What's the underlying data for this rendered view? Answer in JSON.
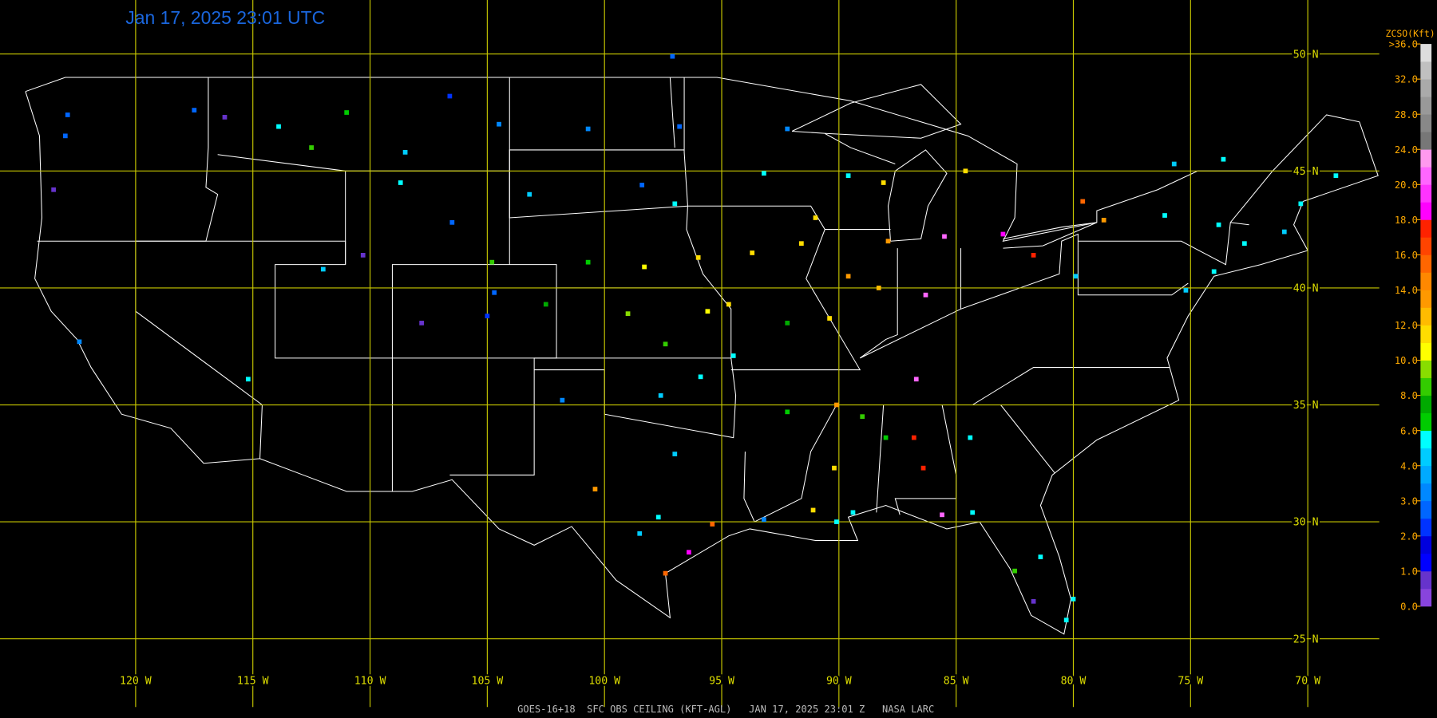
{
  "header": {
    "title": "Jan 17, 2025 23:01 UTC"
  },
  "footer": "GOES-16+18  SFC OBS CEILING (KFT-AGL)   JAN 17, 2025 23:01 Z   NASA LARC",
  "map": {
    "lat_lines": [
      {
        "value": 50,
        "label": "50 N"
      },
      {
        "value": 45,
        "label": "45 N"
      },
      {
        "value": 40,
        "label": "40 N"
      },
      {
        "value": 35,
        "label": "35 N"
      },
      {
        "value": 30,
        "label": "30 N"
      },
      {
        "value": 25,
        "label": "25 N"
      }
    ],
    "lon_lines": [
      {
        "value": -120,
        "label": "120 W"
      },
      {
        "value": -115,
        "label": "115 W"
      },
      {
        "value": -110,
        "label": "110 W"
      },
      {
        "value": -105,
        "label": "105 W"
      },
      {
        "value": -100,
        "label": "100 W"
      },
      {
        "value": -95,
        "label": "95 W"
      },
      {
        "value": -90,
        "label": "90 W"
      },
      {
        "value": -85,
        "label": "85 W"
      },
      {
        "value": -80,
        "label": "80 W"
      },
      {
        "value": -75,
        "label": "75 W"
      },
      {
        "value": -70,
        "label": "70 W"
      }
    ]
  },
  "legend": {
    "title": "ZCSO(Kft)",
    "ticks": [
      {
        "value": 0,
        "label": "0.0"
      },
      {
        "value": 1,
        "label": "1.0"
      },
      {
        "value": 2,
        "label": "2.0"
      },
      {
        "value": 3,
        "label": "3.0"
      },
      {
        "value": 4,
        "label": "4.0"
      },
      {
        "value": 6,
        "label": "6.0"
      },
      {
        "value": 8,
        "label": "8.0"
      },
      {
        "value": 10,
        "label": "10.0"
      },
      {
        "value": 12,
        "label": "12.0"
      },
      {
        "value": 14,
        "label": "14.0"
      },
      {
        "value": 16,
        "label": "16.0"
      },
      {
        "value": 18,
        "label": "18.0"
      },
      {
        "value": 20,
        "label": "20.0"
      },
      {
        "value": 24,
        "label": "24.0"
      },
      {
        "value": 28,
        "label": "28.0"
      },
      {
        "value": 32,
        "label": "32.0"
      },
      {
        "value": 36,
        "label": ">36.0"
      }
    ],
    "colors": [
      "#8844dd",
      "#6633cc",
      "#0000ff",
      "#0000dd",
      "#0033ff",
      "#0066ff",
      "#0088ff",
      "#00aaff",
      "#00ccff",
      "#00ffff",
      "#00cc00",
      "#00aa00",
      "#33cc00",
      "#88dd00",
      "#ffff00",
      "#ffdd00",
      "#ffbb00",
      "#ff9900",
      "#ff8800",
      "#ff6600",
      "#ff4400",
      "#ff2200",
      "#ff00ff",
      "#ff33ff",
      "#ff66ff",
      "#ff99ee",
      "#777777",
      "#888888",
      "#999999",
      "#aaaaaa",
      "#c0c0c0",
      "#dddddd"
    ]
  },
  "stations": [
    [
      -123.0,
      46.5,
      2.5
    ],
    [
      -123.5,
      44.2,
      0.8
    ],
    [
      -122.9,
      47.4,
      2.5
    ],
    [
      -117.5,
      47.6,
      2.5
    ],
    [
      -116.2,
      47.3,
      0.5
    ],
    [
      -113.9,
      46.9,
      5
    ],
    [
      -111.0,
      47.5,
      6.5
    ],
    [
      -108.5,
      45.8,
      4
    ],
    [
      -106.6,
      48.2,
      2
    ],
    [
      -104.5,
      47.0,
      3
    ],
    [
      -112.5,
      46.0,
      8
    ],
    [
      -106.5,
      42.8,
      2.5
    ],
    [
      -108.7,
      44.5,
      5
    ],
    [
      -104.8,
      41.1,
      8
    ],
    [
      -110.3,
      41.4,
      0.8
    ],
    [
      -100.7,
      46.8,
      3
    ],
    [
      -96.8,
      46.9,
      2.5
    ],
    [
      -98.4,
      44.4,
      2.5
    ],
    [
      -103.2,
      44.0,
      4
    ],
    [
      -97.0,
      43.6,
      5
    ],
    [
      -104.7,
      39.8,
      2.5
    ],
    [
      -105.0,
      38.8,
      2
    ],
    [
      -107.8,
      38.5,
      0.8
    ],
    [
      -102.5,
      39.3,
      7
    ],
    [
      -96.0,
      41.3,
      11
    ],
    [
      -98.3,
      40.9,
      10
    ],
    [
      -100.7,
      41.1,
      6
    ],
    [
      -97.4,
      37.6,
      8
    ],
    [
      -95.6,
      39.0,
      10
    ],
    [
      -99.0,
      38.9,
      9
    ],
    [
      -93.2,
      44.9,
      5
    ],
    [
      -92.2,
      46.8,
      3
    ],
    [
      -89.6,
      44.8,
      5
    ],
    [
      -88.1,
      44.5,
      11
    ],
    [
      -91.0,
      43.0,
      11
    ],
    [
      -93.7,
      41.5,
      11.5
    ],
    [
      -91.6,
      41.9,
      11
    ],
    [
      -94.7,
      39.3,
      11
    ],
    [
      -90.4,
      38.7,
      11
    ],
    [
      -92.2,
      38.5,
      7
    ],
    [
      -94.5,
      37.1,
      5
    ],
    [
      -89.6,
      40.5,
      13
    ],
    [
      -88.3,
      40.0,
      12
    ],
    [
      -86.3,
      39.7,
      20
    ],
    [
      -92.2,
      34.7,
      6
    ],
    [
      -90.1,
      35.0,
      13
    ],
    [
      -86.7,
      36.1,
      20
    ],
    [
      -90.2,
      32.3,
      11
    ],
    [
      -89.0,
      34.5,
      8
    ],
    [
      -88.0,
      33.6,
      6
    ],
    [
      -86.4,
      32.3,
      17
    ],
    [
      -86.8,
      33.6,
      17
    ],
    [
      -84.4,
      33.6,
      5
    ],
    [
      -85.6,
      30.3,
      20
    ],
    [
      -90.1,
      30.0,
      5
    ],
    [
      -93.2,
      30.1,
      3
    ],
    [
      -91.1,
      30.5,
      11
    ],
    [
      -89.4,
      30.4,
      5
    ],
    [
      -97.0,
      32.9,
      4
    ],
    [
      -95.4,
      29.9,
      15
    ],
    [
      -97.7,
      30.2,
      5
    ],
    [
      -98.5,
      29.5,
      4
    ],
    [
      -101.8,
      35.2,
      3
    ],
    [
      -97.4,
      27.8,
      15
    ],
    [
      -100.4,
      31.4,
      13
    ],
    [
      -96.4,
      28.7,
      18
    ],
    [
      -97.6,
      35.4,
      4
    ],
    [
      -95.9,
      36.2,
      5
    ],
    [
      -80.3,
      25.8,
      5
    ],
    [
      -81.7,
      26.6,
      0.8
    ],
    [
      -82.5,
      27.9,
      8
    ],
    [
      -80.0,
      26.7,
      5
    ],
    [
      -81.4,
      28.5,
      5
    ],
    [
      -84.3,
      30.4,
      5
    ],
    [
      -83.0,
      42.3,
      18
    ],
    [
      -81.7,
      41.4,
      17
    ],
    [
      -79.9,
      40.5,
      4
    ],
    [
      -78.7,
      42.9,
      13
    ],
    [
      -76.1,
      43.1,
      5
    ],
    [
      -73.8,
      42.7,
      5
    ],
    [
      -71.0,
      42.4,
      4
    ],
    [
      -72.7,
      41.9,
      5
    ],
    [
      -74.0,
      40.7,
      5
    ],
    [
      -75.2,
      39.9,
      4
    ],
    [
      -68.8,
      44.8,
      5
    ],
    [
      -70.3,
      43.6,
      5
    ],
    [
      -84.6,
      45.0,
      11
    ],
    [
      -87.9,
      42.0,
      13
    ],
    [
      -85.5,
      42.2,
      20
    ],
    [
      -97.1,
      49.9,
      2.5
    ],
    [
      -79.6,
      43.7,
      15
    ],
    [
      -75.7,
      45.3,
      4
    ],
    [
      -73.6,
      45.5,
      5
    ],
    [
      -122.4,
      37.7,
      3
    ],
    [
      -115.2,
      36.1,
      5
    ],
    [
      -112.0,
      40.8,
      4
    ]
  ]
}
